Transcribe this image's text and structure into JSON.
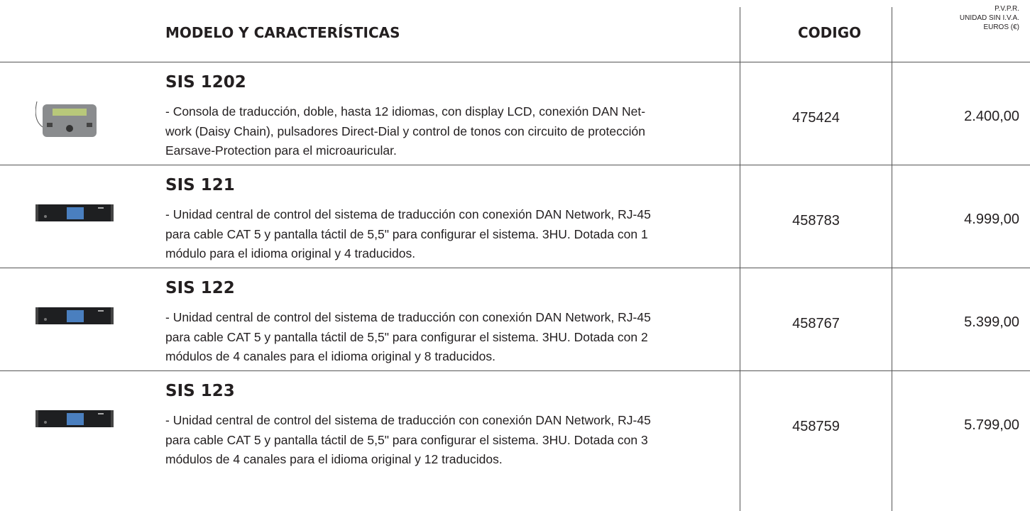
{
  "header": {
    "model": "MODELO Y CARACTERÍSTICAS",
    "code": "CODIGO",
    "price": [
      "P.V.P.R.",
      "UNIDAD SIN I.V.A.",
      "EUROS (€)"
    ]
  },
  "rows": [
    {
      "model": "SIS 1202",
      "description": [
        "- Consola de traducción, doble, hasta 12 idiomas, con display LCD, conexión DAN Net-",
        "work (Daisy Chain), pulsadores Direct-Dial y control de tonos con circuito de protección",
        "Earsave-Protection para el microauricular."
      ],
      "code": "475424",
      "price": "2.400,00"
    },
    {
      "model": "SIS 121",
      "description": [
        "- Unidad central de control del sistema de traducción con conexión DAN Network, RJ-45",
        "para cable CAT 5 y pantalla táctil de 5,5\" para configurar el sistema. 3HU. Dotada con 1",
        "módulo para el idioma original y 4 traducidos."
      ],
      "code": "458783",
      "price": "4.999,00"
    },
    {
      "model": "SIS 122",
      "description": [
        "- Unidad central de control del sistema de traducción con conexión DAN Network, RJ-45",
        "para cable CAT 5 y pantalla táctil de 5,5\" para configurar el sistema. 3HU. Dotada con 2",
        "módulos de 4 canales para el idioma original y 8 traducidos."
      ],
      "code": "458767",
      "price": "5.399,00"
    },
    {
      "model": "SIS 123",
      "description": [
        "- Unidad central de control del sistema de traducción con conexión DAN Network, RJ-45",
        "para cable CAT 5 y pantalla táctil de 5,5\" para configurar el sistema. 3HU. Dotada con 3",
        "módulos de 4 canales para el idioma original y 12 traducidos."
      ],
      "code": "458759",
      "price": "5.799,00"
    }
  ]
}
